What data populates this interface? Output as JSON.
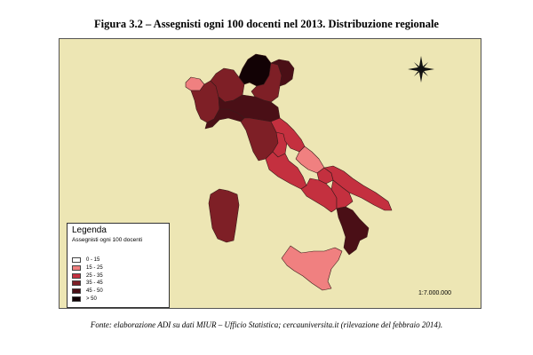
{
  "figure": {
    "title": "Figura 3.2 – Assegnisti ogni 100 docenti nel 2013. Distribuzione regionale"
  },
  "map": {
    "background_color": "#ede6b4",
    "scale_text": "1:7.000.000",
    "compass_icon": "compass-rose-icon"
  },
  "legend": {
    "title": "Legenda",
    "subtitle": "Assegnisti ogni 100 docenti",
    "items": [
      {
        "label": "0 - 15",
        "color": "#ffffff"
      },
      {
        "label": "15 - 25",
        "color": "#f08080"
      },
      {
        "label": "25 - 35",
        "color": "#c4303f"
      },
      {
        "label": "35 - 45",
        "color": "#7e1f26"
      },
      {
        "label": "45 - 50",
        "color": "#4a0f16"
      },
      {
        "label": "> 50",
        "color": "#120205"
      }
    ]
  },
  "regions": [
    {
      "name": "Valle d'Aosta",
      "class": "15 - 25",
      "color": "#f08080"
    },
    {
      "name": "Piemonte",
      "class": "35 - 45",
      "color": "#7e1f26"
    },
    {
      "name": "Lombardia",
      "class": "35 - 45",
      "color": "#7e1f26"
    },
    {
      "name": "Trentino-Alto Adige",
      "class": "> 50",
      "color": "#120205"
    },
    {
      "name": "Veneto",
      "class": "35 - 45",
      "color": "#7e1f26"
    },
    {
      "name": "Friuli-Venezia Giulia",
      "class": "45 - 50",
      "color": "#4a0f16"
    },
    {
      "name": "Liguria",
      "class": "45 - 50",
      "color": "#4a0f16"
    },
    {
      "name": "Emilia-Romagna",
      "class": "45 - 50",
      "color": "#4a0f16"
    },
    {
      "name": "Toscana",
      "class": "35 - 45",
      "color": "#7e1f26"
    },
    {
      "name": "Umbria",
      "class": "25 - 35",
      "color": "#c4303f"
    },
    {
      "name": "Marche",
      "class": "25 - 35",
      "color": "#c4303f"
    },
    {
      "name": "Lazio",
      "class": "25 - 35",
      "color": "#c4303f"
    },
    {
      "name": "Abruzzo",
      "class": "15 - 25",
      "color": "#f08080"
    },
    {
      "name": "Molise",
      "class": "25 - 35",
      "color": "#c4303f"
    },
    {
      "name": "Campania",
      "class": "25 - 35",
      "color": "#c4303f"
    },
    {
      "name": "Puglia",
      "class": "25 - 35",
      "color": "#c4303f"
    },
    {
      "name": "Basilicata",
      "class": "25 - 35",
      "color": "#c4303f"
    },
    {
      "name": "Calabria",
      "class": "45 - 50",
      "color": "#4a0f16"
    },
    {
      "name": "Sicilia",
      "class": "15 - 25",
      "color": "#f08080"
    },
    {
      "name": "Sardegna",
      "class": "35 - 45",
      "color": "#7e1f26"
    }
  ],
  "source": {
    "text": "Fonte: elaborazione ADI su dati MIUR – Ufficio Statistica; cercauniversita.it (rilevazione del febbraio 2014)."
  }
}
